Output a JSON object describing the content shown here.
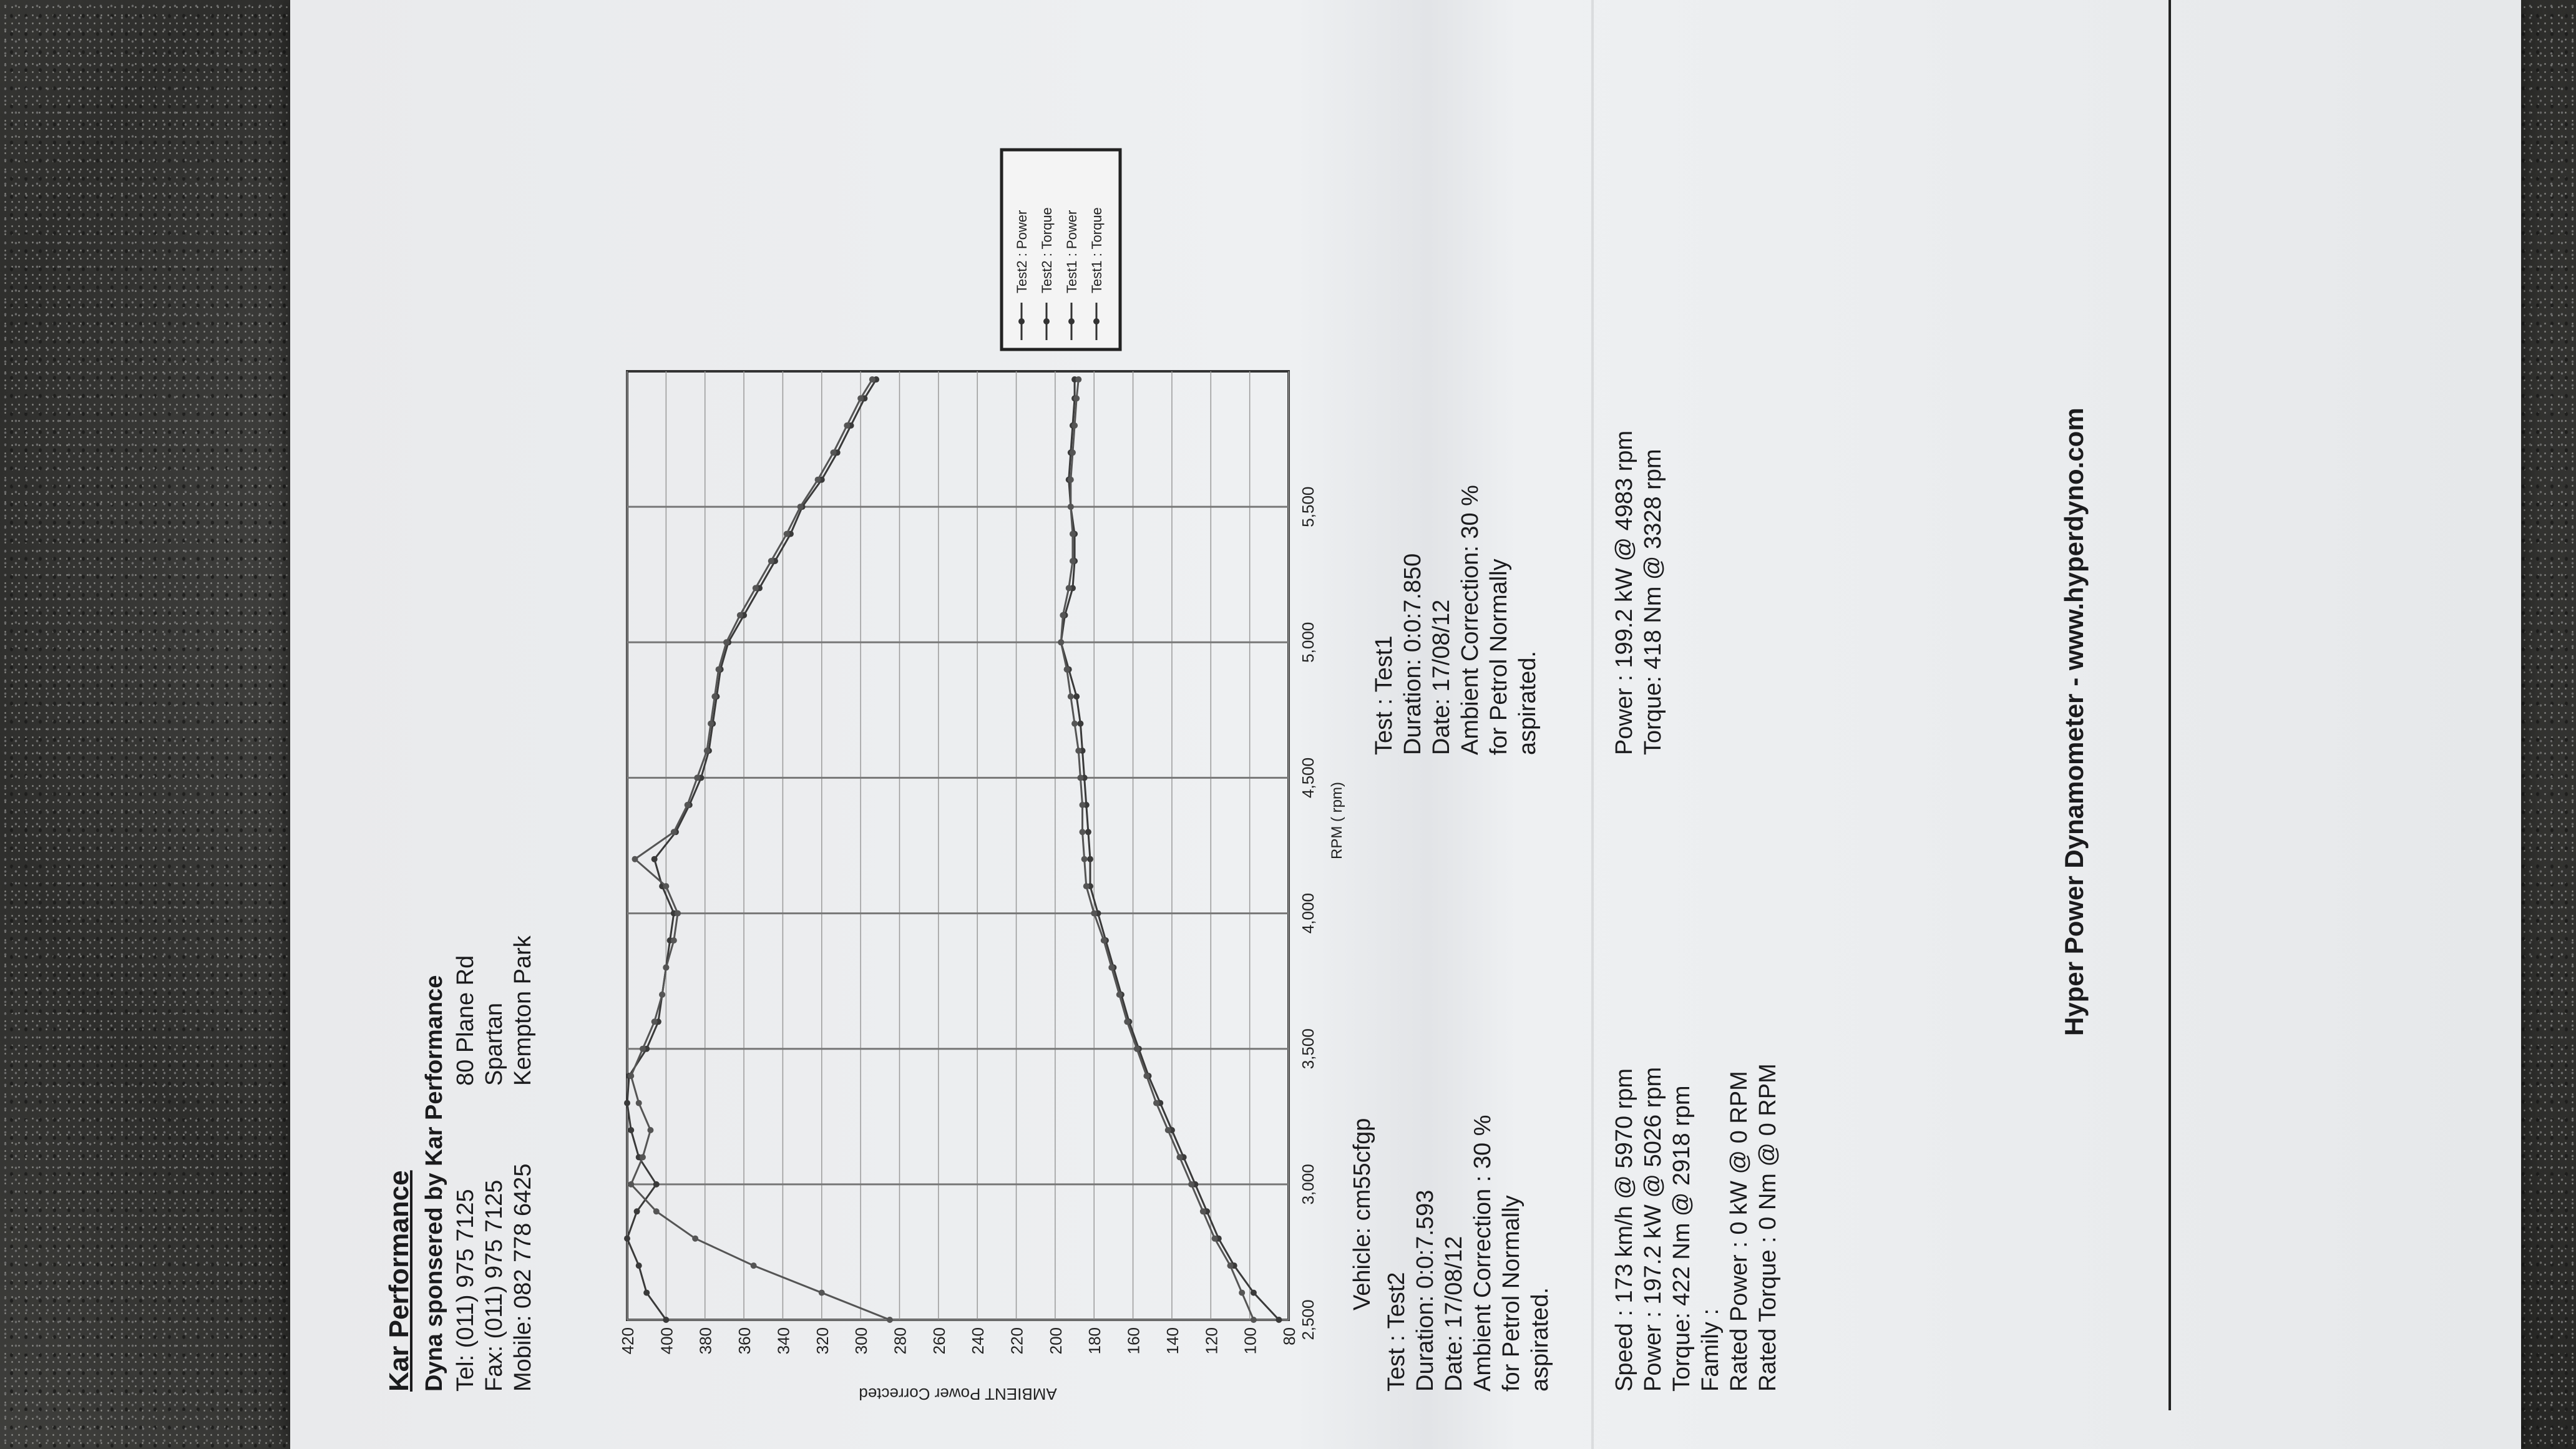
{
  "header": {
    "company": "Kar Performance",
    "sponsor": "Dyna sponsered by Kar Performance",
    "contact_lines": [
      "Tel: (011) 975 7125",
      "Fax: (011) 975 7125",
      "Mobile: 082 778 6425"
    ],
    "address_lines": [
      "80 Plane Rd",
      "Spartan",
      "Kempton Park"
    ]
  },
  "chart_data": {
    "type": "line",
    "xlabel": "RPM ( rpm)",
    "ylabel": "AMBIENT Power Corrected",
    "xlim": [
      2500,
      6000
    ],
    "ylim": [
      80,
      420
    ],
    "x_ticks": [
      "2,500",
      "3,000",
      "3,500",
      "4,000",
      "4,500",
      "5,000",
      "5,500"
    ],
    "y_ticks": [
      "80",
      "100",
      "120",
      "140",
      "160",
      "180",
      "200",
      "220",
      "240",
      "260",
      "280",
      "300",
      "320",
      "340",
      "360",
      "380",
      "400",
      "420"
    ],
    "legend": {
      "placement": "top-right",
      "items": [
        "Test2 : Power",
        "Test2 : Torque",
        "Test1 : Power",
        "Test1 : Torque"
      ]
    },
    "series": [
      {
        "name": "Test2 : Power",
        "color": "#3a3a3a",
        "x": [
          2500,
          2600,
          2700,
          2800,
          2900,
          3000,
          3100,
          3200,
          3300,
          3400,
          3500,
          3600,
          3700,
          3800,
          3900,
          4000,
          4100,
          4200,
          4300,
          4400,
          4500,
          4600,
          4700,
          4800,
          4900,
          5000,
          5100,
          5200,
          5300,
          5400,
          5500,
          5600,
          5700,
          5800,
          5900,
          5970
        ],
        "y": [
          85,
          98,
          108,
          116,
          122,
          128,
          134,
          140,
          146,
          152,
          157,
          162,
          166,
          170,
          174,
          178,
          182,
          182,
          183,
          184,
          185,
          186,
          187,
          189,
          193,
          197,
          195,
          191,
          190,
          190,
          192,
          193,
          192,
          191,
          190,
          190
        ]
      },
      {
        "name": "Test2 : Torque",
        "color": "#3a3a3a",
        "x": [
          2500,
          2600,
          2700,
          2800,
          2900,
          3000,
          3100,
          3200,
          3300,
          3400,
          3500,
          3600,
          3700,
          3800,
          3900,
          4000,
          4100,
          4200,
          4300,
          4400,
          4500,
          4600,
          4700,
          4800,
          4900,
          5000,
          5100,
          5200,
          5300,
          5400,
          5500,
          5600,
          5700,
          5800,
          5900,
          5970
        ],
        "y": [
          400,
          410,
          414,
          420,
          415,
          405,
          414,
          418,
          420,
          419,
          410,
          404,
          402,
          400,
          398,
          396,
          402,
          406,
          395,
          388,
          382,
          378,
          376,
          374,
          372,
          368,
          360,
          352,
          344,
          336,
          330,
          320,
          312,
          305,
          298,
          292
        ]
      },
      {
        "name": "Test1 : Power",
        "color": "#555555",
        "x": [
          2500,
          2600,
          2700,
          2800,
          2900,
          3000,
          3100,
          3200,
          3300,
          3400,
          3500,
          3600,
          3700,
          3800,
          3900,
          4000,
          4100,
          4200,
          4300,
          4400,
          4500,
          4600,
          4700,
          4800,
          4900,
          5000,
          5100,
          5200,
          5300,
          5400,
          5500,
          5600,
          5700,
          5800,
          5900,
          5970
        ],
        "y": [
          98,
          104,
          110,
          118,
          124,
          130,
          136,
          142,
          148,
          153,
          158,
          163,
          167,
          171,
          175,
          180,
          184,
          185,
          186,
          186,
          187,
          188,
          190,
          192,
          194,
          197,
          196,
          193,
          191,
          191,
          192,
          192,
          191,
          190,
          189,
          188
        ]
      },
      {
        "name": "Test1 : Torque",
        "color": "#555555",
        "x": [
          2500,
          2600,
          2700,
          2800,
          2900,
          3000,
          3100,
          3200,
          3300,
          3400,
          3500,
          3600,
          3700,
          3800,
          3900,
          4000,
          4100,
          4200,
          4300,
          4400,
          4500,
          4600,
          4700,
          4800,
          4900,
          5000,
          5100,
          5200,
          5300,
          5400,
          5500,
          5600,
          5700,
          5800,
          5900,
          5970
        ],
        "y": [
          285,
          320,
          355,
          385,
          405,
          418,
          412,
          408,
          414,
          418,
          412,
          406,
          402,
          400,
          396,
          394,
          400,
          416,
          396,
          389,
          384,
          379,
          377,
          375,
          373,
          369,
          362,
          354,
          346,
          338,
          331,
          322,
          314,
          307,
          300,
          294
        ]
      }
    ]
  },
  "test2": {
    "vehicle": "Vehicle: cm55cfgp",
    "lines": [
      "Test    : Test2",
      "Duration: 0:0:7.593",
      "Date: 17/08/12",
      "Ambient Correction : 30 %",
      "  for Petrol Normally",
      "  aspirated."
    ]
  },
  "test1": {
    "lines": [
      "Test    : Test1",
      "Duration: 0:0:7.850",
      "Date: 17/08/12",
      "Ambient Correction: 30 %",
      "  for Petrol Normally",
      "  aspirated."
    ]
  },
  "results2": {
    "lines": [
      "Speed : 173 km/h @ 5970 rpm",
      "Power : 197.2 kW @ 5026 rpm",
      "Torque: 422 Nm @ 2918 rpm",
      "Family :",
      "Rated Power : 0 kW @ 0 RPM",
      "Rated Torque : 0 Nm @ 0 RPM"
    ]
  },
  "results1": {
    "lines": [
      "Power : 199.2 kW @ 4983 rpm",
      "Torque: 418 Nm @ 3328 rpm"
    ]
  },
  "footer": {
    "text": "Hyper Power Dynamometer  -  www.hyperdyno.com"
  }
}
